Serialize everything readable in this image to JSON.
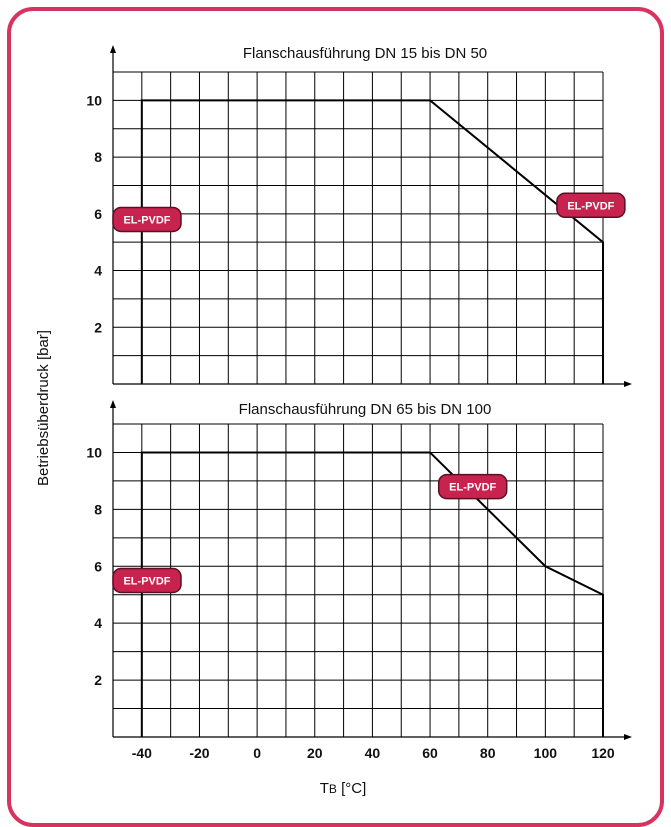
{
  "colors": {
    "frame": "#d8325e",
    "badge_fill": "#c8234e",
    "badge_stroke": "#5a0f24",
    "grid": "#000000",
    "line": "#000000"
  },
  "ylabel": "Betriebsüberdruck [bar]",
  "xlabel_main": "T",
  "xlabel_sub": "B",
  "xlabel_unit": " [°C]",
  "chart_data": [
    {
      "type": "line",
      "title": "Flanschausführung DN 15 bis DN 50",
      "xlim": [
        -50,
        120
      ],
      "ylim": [
        0,
        11
      ],
      "yticks": [
        2,
        4,
        6,
        8,
        10
      ],
      "grid": true,
      "series": [
        {
          "name": "EL-PVDF",
          "x": [
            -40,
            -40,
            60,
            120,
            120
          ],
          "y": [
            0,
            10,
            10,
            5,
            0
          ]
        }
      ],
      "annotations": [
        {
          "text": "EL-PVDF",
          "x": -50,
          "y": 5.8
        },
        {
          "text": "EL-PVDF",
          "x": 104,
          "y": 6.3
        }
      ]
    },
    {
      "type": "line",
      "title": "Flanschausführung DN 65 bis DN 100",
      "xlim": [
        -50,
        120
      ],
      "ylim": [
        0,
        11
      ],
      "yticks": [
        2,
        4,
        6,
        8,
        10
      ],
      "xticks": [
        -40,
        -20,
        0,
        20,
        40,
        60,
        80,
        100,
        120
      ],
      "grid": true,
      "series": [
        {
          "name": "EL-PVDF",
          "x": [
            -40,
            -40,
            60,
            100,
            120,
            120
          ],
          "y": [
            0,
            10,
            10,
            6,
            5,
            0
          ]
        }
      ],
      "annotations": [
        {
          "text": "EL-PVDF",
          "x": -50,
          "y": 5.5
        },
        {
          "text": "EL-PVDF",
          "x": 63,
          "y": 8.8
        }
      ]
    }
  ]
}
